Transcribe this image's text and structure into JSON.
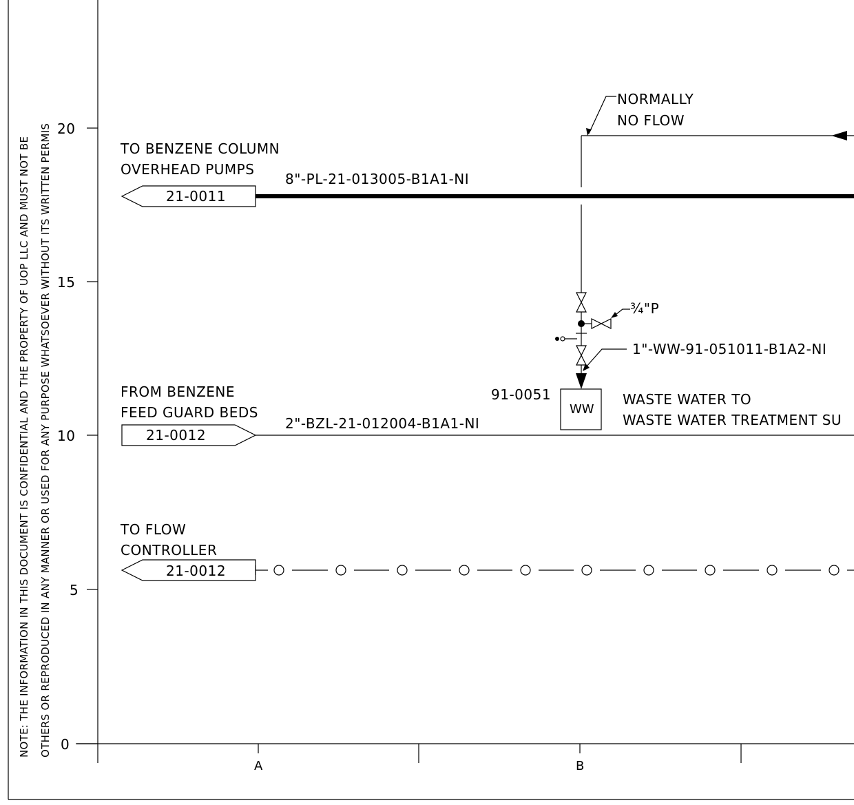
{
  "note": {
    "line1": "NOTE:   THE INFORMATION IN THIS DOCUMENT IS CONFIDENTIAL AND THE PROPERTY OF UOP LLC AND MUST NOT BE",
    "line2": "OTHERS OR REPRODUCED IN ANY MANNER OR USED FOR ANY PURPOSE WHATSOEVER WITHOUT ITS WRITTEN PERMIS"
  },
  "y_scale": [
    "0",
    "5",
    "10",
    "15",
    "20"
  ],
  "x_scale": [
    "A",
    "B"
  ],
  "normally_no_flow": {
    "line1": "NORMALLY",
    "line2": "NO FLOW"
  },
  "benzene_overhead": {
    "dest_line1": "TO BENZENE COLUMN",
    "dest_line2": "OVERHEAD PUMPS",
    "connector": "21-0011",
    "line_spec": "8\"-PL-21-013005-B1A1-NI"
  },
  "vent_spec": "¾\"P",
  "wastewater_line_spec": "1\"-WW-91-051011-B1A2-NI",
  "ww_tank": {
    "tag": "91-0051",
    "label": "WW",
    "desc_line1": "WASTE WATER TO",
    "desc_line2": "WASTE WATER TREATMENT SU"
  },
  "benzene_feed": {
    "source_line1": "FROM BENZENE",
    "source_line2": "FEED GUARD BEDS",
    "connector": "21-0012",
    "line_spec": "2\"-BZL-21-012004-B1A1-NI"
  },
  "flow_controller": {
    "dest_line1": "TO FLOW",
    "dest_line2": "CONTROLLER",
    "connector": "21-0012"
  }
}
